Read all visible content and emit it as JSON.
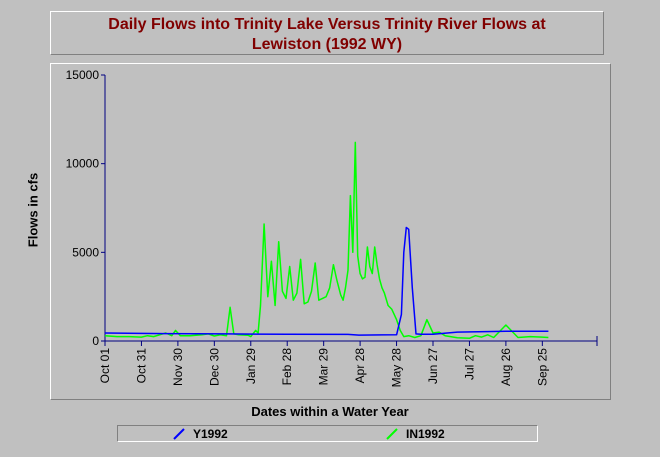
{
  "chart_data": {
    "type": "line",
    "title_line1": "Daily Flows into Trinity Lake Versus Trinity River Flows at",
    "title_line2": "Lewiston (1992 WY)",
    "xlabel": "Dates within a Water Year",
    "ylabel": "Flows in cfs",
    "ylim": [
      0,
      15000
    ],
    "xlim": [
      0,
      405
    ],
    "y_ticks": [
      0,
      5000,
      10000,
      15000
    ],
    "y_tick_labels": [
      "0",
      "5000",
      "10000",
      "15000"
    ],
    "x_ticks": [
      0,
      30,
      60,
      90,
      120,
      150,
      180,
      210,
      240,
      270,
      300,
      330,
      360
    ],
    "x_tick_labels": [
      "Oct 01",
      "Oct 31",
      "Nov 30",
      "Dec 30",
      "Jan 29",
      "Feb 28",
      "Mar 29",
      "Apr 28",
      "May 28",
      "Jun 27",
      "Jul 27",
      "Aug 26",
      "Sep 25"
    ],
    "grid": false,
    "legend_position": "bottom",
    "series": [
      {
        "name": "Y1992",
        "color": "#0000ff",
        "x": [
          0,
          50,
          100,
          150,
          200,
          209,
          240,
          244,
          246,
          248,
          250,
          253,
          256,
          260,
          270,
          290,
          330,
          365
        ],
        "y": [
          450,
          420,
          400,
          380,
          370,
          330,
          350,
          1500,
          5000,
          6400,
          6300,
          3000,
          400,
          380,
          380,
          500,
          550,
          550
        ]
      },
      {
        "name": "IN1992",
        "color": "#00ff00",
        "x": [
          0,
          10,
          20,
          30,
          35,
          40,
          45,
          50,
          55,
          58,
          62,
          70,
          80,
          85,
          90,
          95,
          100,
          103,
          106,
          110,
          118,
          120,
          124,
          126,
          128,
          131,
          134,
          137,
          140,
          143,
          146,
          149,
          152,
          155,
          158,
          161,
          164,
          167,
          170,
          173,
          176,
          179,
          182,
          185,
          188,
          191,
          194,
          196,
          198,
          200,
          202,
          204,
          206,
          208,
          210,
          212,
          214,
          216,
          218,
          220,
          222,
          224,
          226,
          228,
          230,
          233,
          236,
          240,
          243,
          246,
          250,
          255,
          260,
          265,
          270,
          275,
          280,
          290,
          300,
          305,
          310,
          315,
          320,
          330,
          340,
          350,
          360,
          365
        ],
        "y": [
          300,
          250,
          250,
          220,
          300,
          250,
          350,
          450,
          300,
          600,
          300,
          300,
          350,
          400,
          280,
          350,
          300,
          1900,
          400,
          350,
          320,
          250,
          600,
          450,
          2000,
          6600,
          2500,
          4500,
          2000,
          5600,
          2800,
          2400,
          4200,
          2300,
          2700,
          4600,
          2100,
          2200,
          2800,
          4400,
          2300,
          2400,
          2500,
          3000,
          4300,
          3400,
          2600,
          2300,
          3000,
          4000,
          8200,
          5000,
          11200,
          4800,
          3800,
          3500,
          3600,
          5300,
          4200,
          3800,
          5300,
          4300,
          3500,
          3000,
          2700,
          2000,
          1800,
          1200,
          600,
          250,
          300,
          200,
          300,
          1200,
          450,
          500,
          300,
          180,
          150,
          300,
          220,
          350,
          200,
          900,
          200,
          250,
          220,
          200
        ]
      }
    ]
  }
}
